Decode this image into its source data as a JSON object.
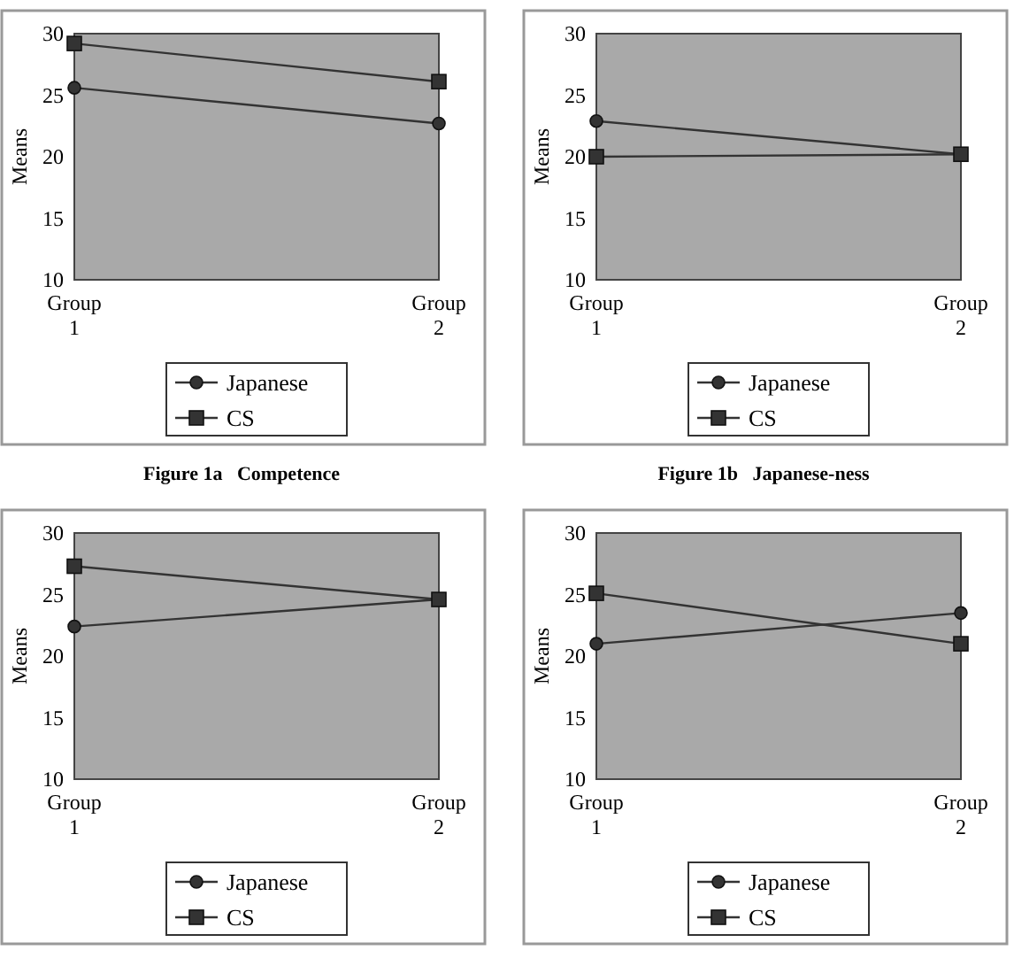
{
  "chart_data": [
    {
      "type": "line",
      "title": "Figure 1a   Competence",
      "ylabel": "Means",
      "categories": [
        "Group 1",
        "Group 2"
      ],
      "ylim": [
        10,
        30
      ],
      "yticks": [
        10,
        15,
        20,
        25,
        30
      ],
      "legend": "bottom",
      "line_style": "solid",
      "series": [
        {
          "name": "Japanese",
          "color": "#333333",
          "marker": "circle",
          "values": [
            25.6,
            22.7
          ]
        },
        {
          "name": "CS",
          "color": "#333333",
          "marker": "square",
          "values": [
            29.2,
            26.1
          ]
        }
      ]
    },
    {
      "type": "line",
      "title": "Figure 1b   Japanese-ness",
      "ylabel": "Means",
      "categories": [
        "Group 1",
        "Group 2"
      ],
      "ylim": [
        10,
        30
      ],
      "yticks": [
        10,
        15,
        20,
        25,
        30
      ],
      "legend": "bottom",
      "line_style": "solid",
      "series": [
        {
          "name": "Japanese",
          "color": "#333333",
          "marker": "circle",
          "values": [
            22.9,
            20.2
          ]
        },
        {
          "name": "CS",
          "color": "#333333",
          "marker": "square",
          "values": [
            20.0,
            20.2
          ]
        }
      ]
    },
    {
      "type": "line",
      "ylabel": "Means",
      "categories": [
        "Group 1",
        "Group 2"
      ],
      "ylim": [
        10,
        30
      ],
      "yticks": [
        10,
        15,
        20,
        25,
        30
      ],
      "legend": "bottom",
      "line_style": "solid",
      "series": [
        {
          "name": "Japanese",
          "color": "#333333",
          "marker": "circle",
          "values": [
            22.4,
            24.6
          ]
        },
        {
          "name": "CS",
          "color": "#333333",
          "marker": "square",
          "values": [
            27.3,
            24.6
          ]
        }
      ]
    },
    {
      "type": "line",
      "ylabel": "Means",
      "categories": [
        "Group 1",
        "Group 2"
      ],
      "ylim": [
        10,
        30
      ],
      "yticks": [
        10,
        15,
        20,
        25,
        30
      ],
      "legend": "bottom",
      "line_style": "solid",
      "series": [
        {
          "name": "Japanese",
          "color": "#333333",
          "marker": "circle",
          "values": [
            21.0,
            23.5
          ]
        },
        {
          "name": "CS",
          "color": "#333333",
          "marker": "square",
          "values": [
            25.1,
            21.0
          ]
        }
      ]
    }
  ]
}
